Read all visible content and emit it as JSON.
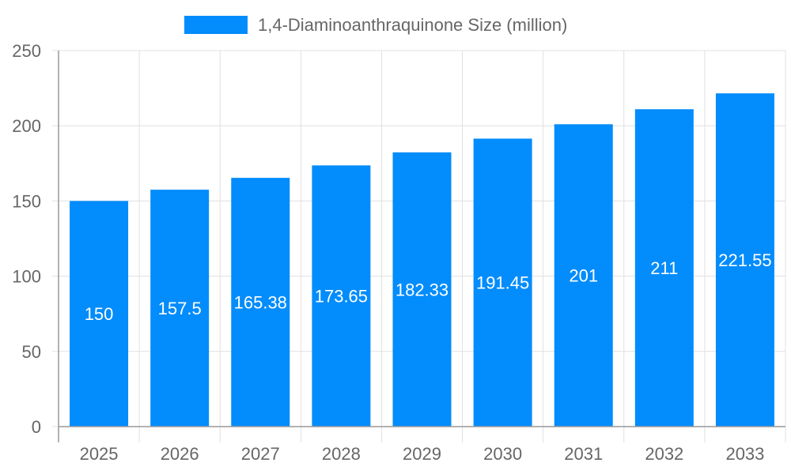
{
  "chart_data": {
    "type": "bar",
    "title": "",
    "xlabel": "",
    "ylabel": "",
    "categories": [
      "2025",
      "2026",
      "2027",
      "2028",
      "2029",
      "2030",
      "2031",
      "2032",
      "2033"
    ],
    "series": [
      {
        "name": "1,4-Diaminoanthraquinone Size (million)",
        "values": [
          150,
          157.5,
          165.38,
          173.65,
          182.33,
          191.45,
          201,
          211,
          221.55
        ],
        "color": "#028cfc"
      }
    ],
    "data_labels": [
      "150",
      "157.5",
      "165.38",
      "173.65",
      "182.33",
      "191.45",
      "201",
      "211",
      "221.55"
    ],
    "ylim": [
      0,
      250
    ],
    "yticks": [
      "0",
      "50",
      "100",
      "150",
      "200",
      "250"
    ],
    "grid": true,
    "legend": "top"
  }
}
